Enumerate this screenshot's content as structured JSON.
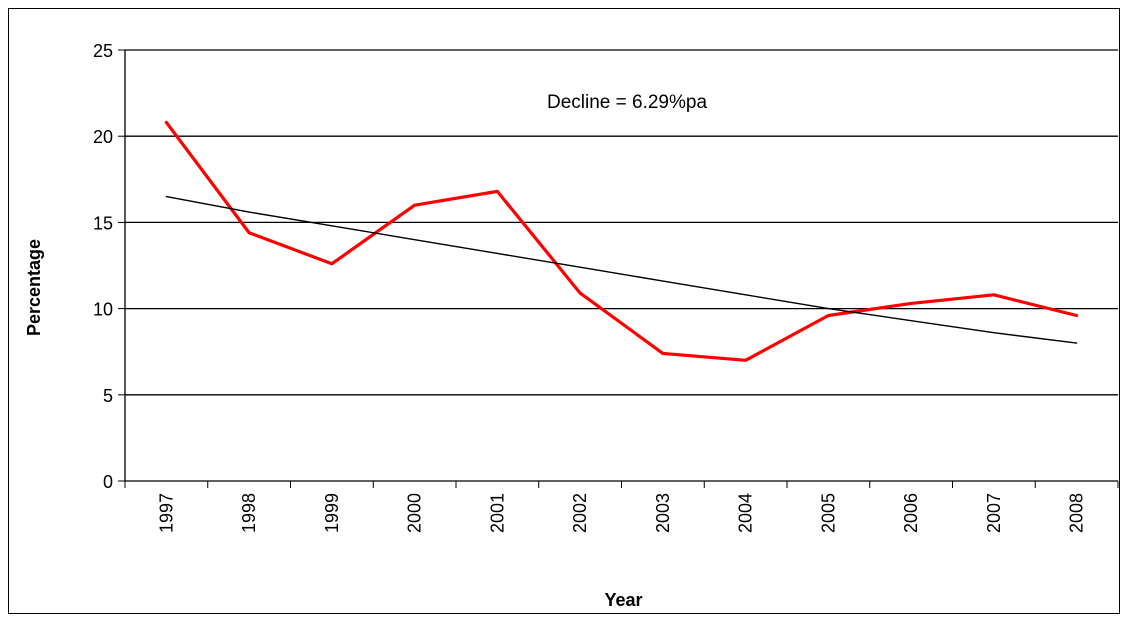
{
  "chart_data": {
    "type": "line",
    "title": "",
    "xlabel": "Year",
    "ylabel": "Percentage",
    "annotation": "Decline = 6.29%pa",
    "categories": [
      "1997",
      "1998",
      "1999",
      "2000",
      "2001",
      "2002",
      "2003",
      "2004",
      "2005",
      "2006",
      "2007",
      "2008"
    ],
    "ylim": [
      0,
      25
    ],
    "yticks": [
      0,
      5,
      10,
      15,
      20,
      25
    ],
    "grid": true,
    "legend": "none",
    "series": [
      {
        "values": [
          20.8,
          14.4,
          12.6,
          16.0,
          16.8,
          10.9,
          7.4,
          7.0,
          9.6,
          10.3,
          10.8,
          9.6
        ],
        "color": "#ff0000"
      },
      {
        "trendline": true,
        "values": [
          16.5,
          15.6,
          14.8,
          14.0,
          13.2,
          12.4,
          11.6,
          10.8,
          10.0,
          9.3,
          8.6,
          8.0
        ],
        "color": "#000000"
      }
    ]
  }
}
